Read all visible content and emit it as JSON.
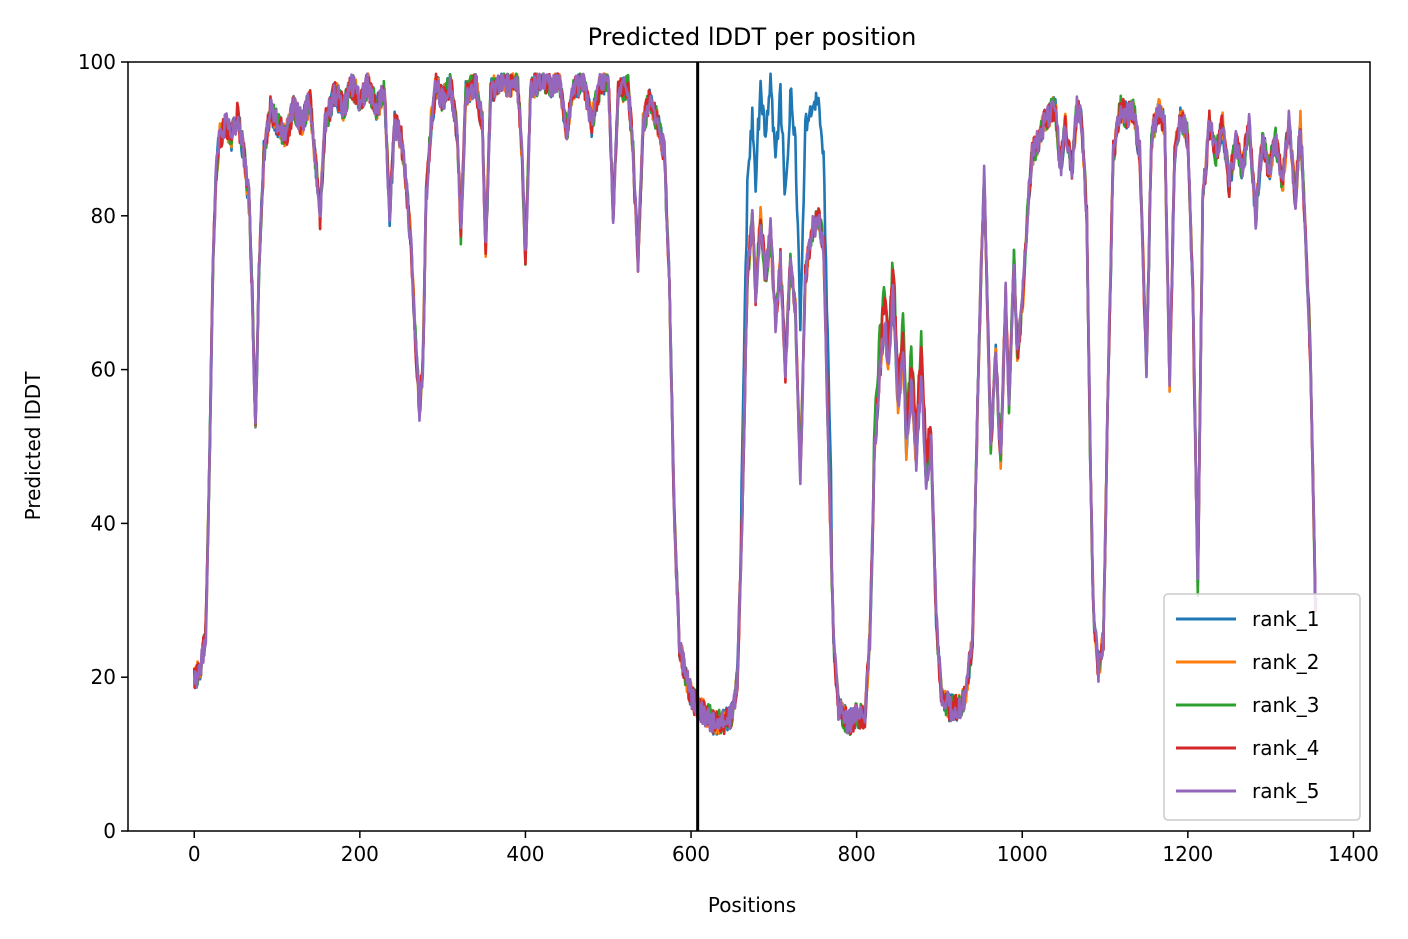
{
  "chart_data": {
    "type": "line",
    "title": "Predicted lDDT per position",
    "xlabel": "Positions",
    "ylabel": "Predicted lDDT",
    "xlim": [
      -80,
      1420
    ],
    "ylim": [
      0,
      100
    ],
    "xticks": [
      0,
      200,
      400,
      600,
      800,
      1000,
      1200,
      1400
    ],
    "yticks": [
      0,
      20,
      40,
      60,
      80,
      100
    ],
    "grid": false,
    "legend_position": "lower-right",
    "vline_x": 608,
    "vline_color": "#000000",
    "series": [
      {
        "name": "rank_1",
        "color": "#1f77b4"
      },
      {
        "name": "rank_2",
        "color": "#ff7f0e"
      },
      {
        "name": "rank_3",
        "color": "#2ca02c"
      },
      {
        "name": "rank_4",
        "color": "#d62728"
      },
      {
        "name": "rank_5",
        "color": "#9467bd"
      }
    ],
    "profile": [
      [
        0,
        20
      ],
      [
        8,
        21
      ],
      [
        14,
        26
      ],
      [
        18,
        45
      ],
      [
        22,
        70
      ],
      [
        26,
        85
      ],
      [
        30,
        90
      ],
      [
        38,
        92
      ],
      [
        45,
        90
      ],
      [
        52,
        93
      ],
      [
        60,
        88
      ],
      [
        66,
        82
      ],
      [
        70,
        70
      ],
      [
        74,
        52
      ],
      [
        78,
        72
      ],
      [
        84,
        88
      ],
      [
        92,
        94
      ],
      [
        100,
        92
      ],
      [
        110,
        90
      ],
      [
        120,
        94
      ],
      [
        130,
        92
      ],
      [
        140,
        95
      ],
      [
        148,
        85
      ],
      [
        152,
        80
      ],
      [
        158,
        92
      ],
      [
        170,
        96
      ],
      [
        180,
        94
      ],
      [
        190,
        97
      ],
      [
        200,
        95
      ],
      [
        210,
        97
      ],
      [
        220,
        94
      ],
      [
        230,
        96
      ],
      [
        236,
        80
      ],
      [
        242,
        92
      ],
      [
        250,
        90
      ],
      [
        256,
        84
      ],
      [
        262,
        76
      ],
      [
        268,
        62
      ],
      [
        272,
        55
      ],
      [
        276,
        60
      ],
      [
        280,
        82
      ],
      [
        286,
        92
      ],
      [
        292,
        97
      ],
      [
        300,
        95
      ],
      [
        310,
        97
      ],
      [
        318,
        90
      ],
      [
        322,
        78
      ],
      [
        328,
        96
      ],
      [
        340,
        97
      ],
      [
        348,
        92
      ],
      [
        352,
        75
      ],
      [
        358,
        96
      ],
      [
        370,
        98
      ],
      [
        380,
        97
      ],
      [
        390,
        98
      ],
      [
        396,
        88
      ],
      [
        400,
        74
      ],
      [
        406,
        96
      ],
      [
        420,
        98
      ],
      [
        430,
        97
      ],
      [
        440,
        98
      ],
      [
        450,
        91
      ],
      [
        456,
        96
      ],
      [
        470,
        98
      ],
      [
        480,
        92
      ],
      [
        490,
        97
      ],
      [
        500,
        98
      ],
      [
        506,
        80
      ],
      [
        512,
        96
      ],
      [
        524,
        97
      ],
      [
        530,
        88
      ],
      [
        536,
        74
      ],
      [
        542,
        92
      ],
      [
        550,
        95
      ],
      [
        560,
        92
      ],
      [
        568,
        88
      ],
      [
        574,
        70
      ],
      [
        580,
        40
      ],
      [
        586,
        24
      ],
      [
        594,
        20
      ],
      [
        602,
        17
      ],
      [
        610,
        16
      ],
      [
        620,
        15
      ],
      [
        630,
        14
      ],
      [
        640,
        14
      ],
      [
        650,
        15
      ],
      [
        656,
        20
      ],
      [
        662,
        42
      ],
      [
        668,
        72
      ],
      [
        674,
        80
      ],
      [
        678,
        70
      ],
      [
        684,
        80
      ],
      [
        690,
        72
      ],
      [
        696,
        78
      ],
      [
        702,
        66
      ],
      [
        708,
        74
      ],
      [
        714,
        60
      ],
      [
        720,
        74
      ],
      [
        726,
        68
      ],
      [
        732,
        46
      ],
      [
        738,
        72
      ],
      [
        746,
        78
      ],
      [
        754,
        80
      ],
      [
        760,
        76
      ],
      [
        766,
        50
      ],
      [
        772,
        25
      ],
      [
        778,
        16
      ],
      [
        790,
        14
      ],
      [
        800,
        15
      ],
      [
        810,
        15
      ],
      [
        816,
        25
      ],
      [
        822,
        50
      ],
      [
        828,
        60
      ],
      [
        834,
        66
      ],
      [
        838,
        60
      ],
      [
        844,
        70
      ],
      [
        850,
        55
      ],
      [
        856,
        62
      ],
      [
        860,
        50
      ],
      [
        866,
        58
      ],
      [
        872,
        48
      ],
      [
        878,
        60
      ],
      [
        884,
        46
      ],
      [
        890,
        50
      ],
      [
        896,
        28
      ],
      [
        902,
        18
      ],
      [
        912,
        16
      ],
      [
        924,
        16
      ],
      [
        932,
        18
      ],
      [
        940,
        25
      ],
      [
        946,
        55
      ],
      [
        950,
        72
      ],
      [
        954,
        85
      ],
      [
        958,
        68
      ],
      [
        962,
        50
      ],
      [
        968,
        62
      ],
      [
        974,
        48
      ],
      [
        980,
        70
      ],
      [
        984,
        56
      ],
      [
        990,
        74
      ],
      [
        994,
        62
      ],
      [
        1000,
        68
      ],
      [
        1006,
        80
      ],
      [
        1012,
        88
      ],
      [
        1020,
        90
      ],
      [
        1030,
        93
      ],
      [
        1040,
        94
      ],
      [
        1046,
        86
      ],
      [
        1052,
        92
      ],
      [
        1060,
        86
      ],
      [
        1066,
        94
      ],
      [
        1072,
        92
      ],
      [
        1078,
        80
      ],
      [
        1082,
        50
      ],
      [
        1086,
        28
      ],
      [
        1092,
        21
      ],
      [
        1098,
        25
      ],
      [
        1104,
        60
      ],
      [
        1110,
        88
      ],
      [
        1118,
        94
      ],
      [
        1126,
        93
      ],
      [
        1134,
        94
      ],
      [
        1142,
        88
      ],
      [
        1150,
        60
      ],
      [
        1156,
        90
      ],
      [
        1164,
        94
      ],
      [
        1172,
        92
      ],
      [
        1178,
        58
      ],
      [
        1184,
        88
      ],
      [
        1192,
        93
      ],
      [
        1200,
        90
      ],
      [
        1206,
        70
      ],
      [
        1212,
        32
      ],
      [
        1218,
        82
      ],
      [
        1226,
        92
      ],
      [
        1234,
        88
      ],
      [
        1242,
        92
      ],
      [
        1250,
        84
      ],
      [
        1258,
        90
      ],
      [
        1266,
        86
      ],
      [
        1274,
        92
      ],
      [
        1282,
        80
      ],
      [
        1290,
        90
      ],
      [
        1298,
        86
      ],
      [
        1306,
        90
      ],
      [
        1314,
        84
      ],
      [
        1322,
        92
      ],
      [
        1330,
        82
      ],
      [
        1336,
        92
      ],
      [
        1342,
        78
      ],
      [
        1348,
        62
      ],
      [
        1354,
        30
      ]
    ]
  }
}
